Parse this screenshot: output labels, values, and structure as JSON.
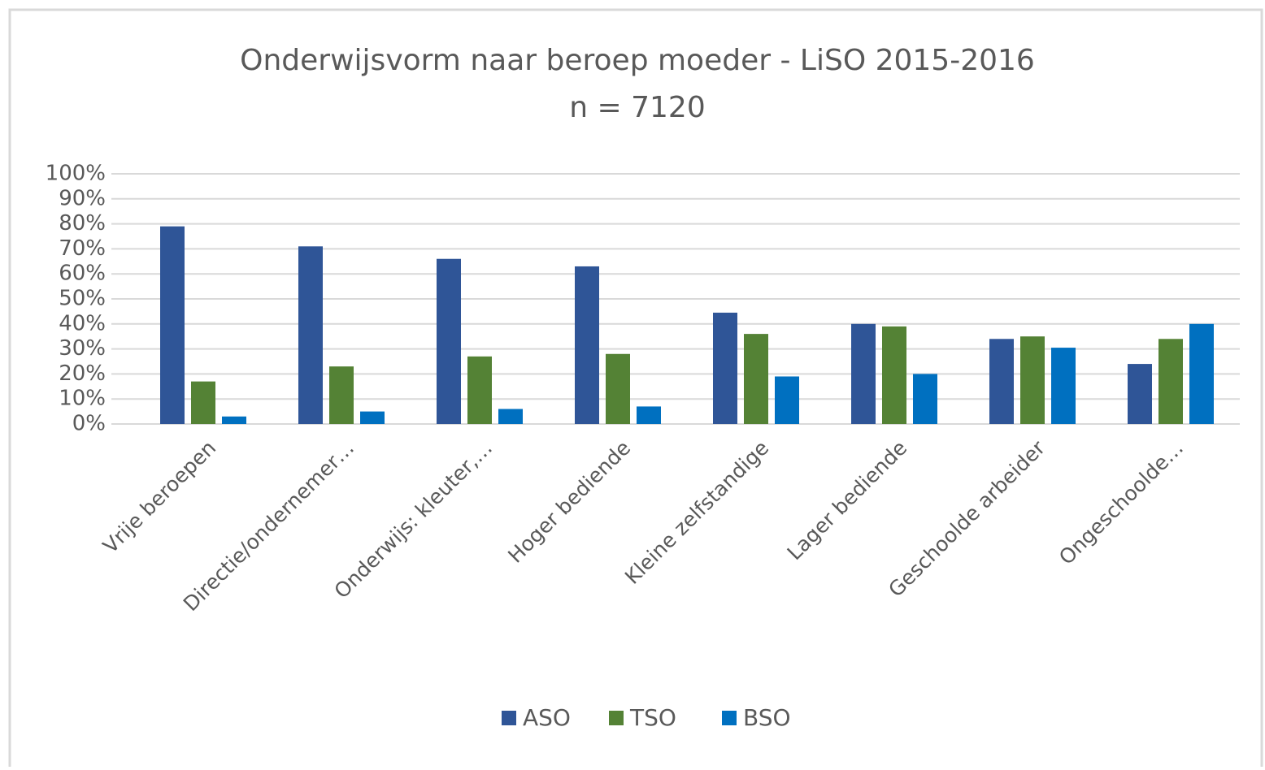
{
  "chart_data": {
    "type": "bar",
    "title": "Onderwijsvorm naar beroep moeder - LiSO 2015-2016",
    "subtitle": "n = 7120",
    "categories": [
      "Vrije beroepen",
      "Directie/ondernemer…",
      "Onderwijs: kleuter,…",
      "Hoger bediende",
      "Kleine zelfstandige",
      "Lager bediende",
      "Geschoolde arbeider",
      "Ongeschoolde…"
    ],
    "series": [
      {
        "name": "ASO",
        "color": "#2f5597",
        "values": [
          79,
          71,
          66,
          63,
          44.5,
          40,
          34,
          24
        ]
      },
      {
        "name": "TSO",
        "color": "#548235",
        "values": [
          17,
          23,
          27,
          28,
          36,
          39,
          35,
          34
        ]
      },
      {
        "name": "BSO",
        "color": "#0070c0",
        "values": [
          3,
          5,
          6,
          7,
          19,
          20,
          30.5,
          40
        ]
      }
    ],
    "ylim": [
      0,
      100
    ],
    "yticks": [
      {
        "value": 0,
        "label": "0%"
      },
      {
        "value": 10,
        "label": "10%"
      },
      {
        "value": 20,
        "label": "20%"
      },
      {
        "value": 30,
        "label": "30%"
      },
      {
        "value": 40,
        "label": "40%"
      },
      {
        "value": 50,
        "label": "50%"
      },
      {
        "value": 60,
        "label": "60%"
      },
      {
        "value": 70,
        "label": "70%"
      },
      {
        "value": 80,
        "label": "80%"
      },
      {
        "value": 90,
        "label": "90%"
      },
      {
        "value": 100,
        "label": "100%"
      }
    ],
    "grid": true,
    "legend": "bottom"
  }
}
